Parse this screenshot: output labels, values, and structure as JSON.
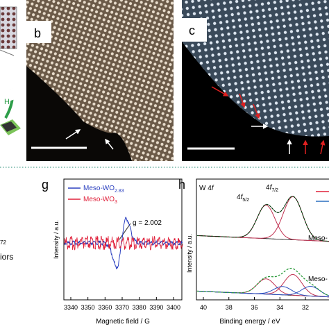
{
  "top": {
    "left_label": {
      "main": "H",
      "sub": "2"
    },
    "b": {
      "label": "b"
    },
    "c": {
      "label": "c"
    }
  },
  "left_cut": {
    "fragment": "72",
    "text": "iors"
  },
  "g": {
    "label": "g",
    "legend": [
      {
        "main": "Meso-WO",
        "sub": "2.83"
      },
      {
        "main": "Meso-WO",
        "sub": "3"
      }
    ],
    "annotation": "g = 2.002",
    "y_label": "Intensity / a.u.",
    "x_label": "Magnetic field / G",
    "x_ticks": [
      3340,
      3350,
      3360,
      3370,
      3380,
      3390,
      3400
    ]
  },
  "h": {
    "label": "h",
    "title": {
      "main": "W 4",
      "italic": "f"
    },
    "peak_labels": [
      {
        "main": "4",
        "italic": "f",
        "sub": "5/2"
      },
      {
        "main": "4",
        "italic": "f",
        "sub": "7/2"
      }
    ],
    "sample_labels": [
      "Meso-",
      "Meso-"
    ],
    "y_label": "Intensity / a.u.",
    "x_label": "Binding energy / eV",
    "x_ticks": [
      40,
      38,
      36,
      34,
      32
    ]
  }
}
